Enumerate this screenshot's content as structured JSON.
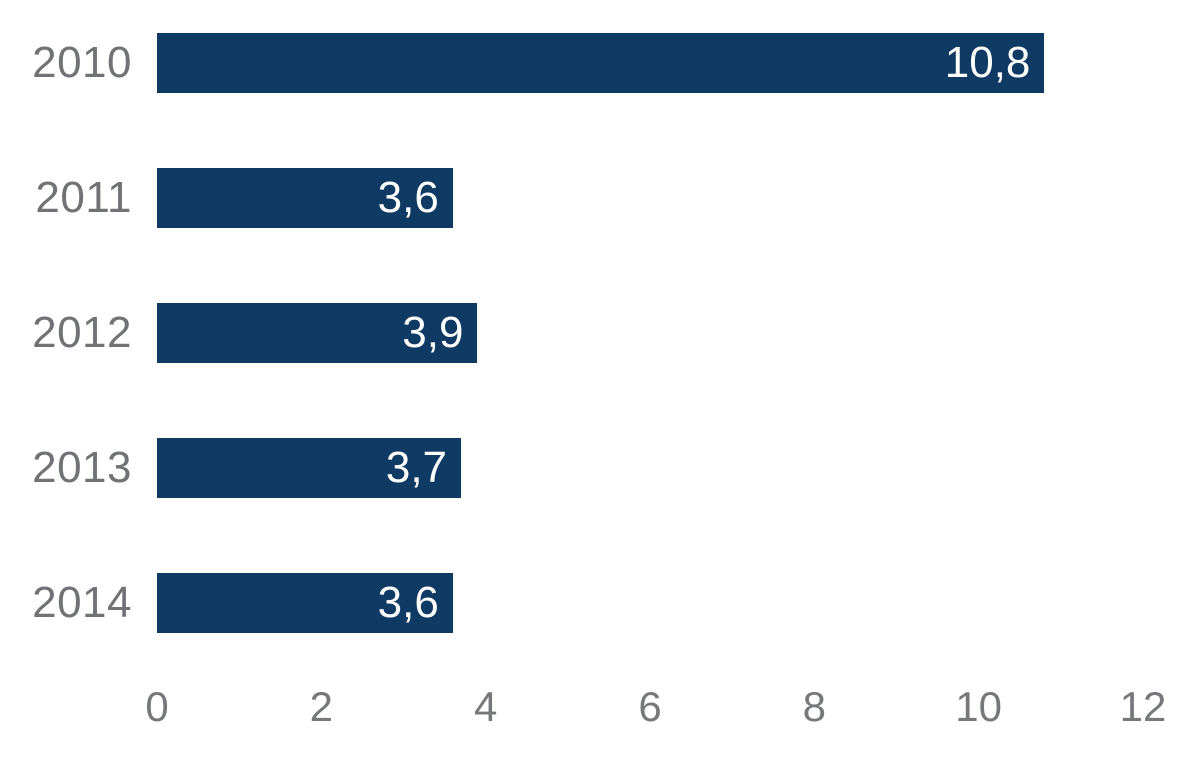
{
  "chart_data": {
    "type": "bar",
    "orientation": "horizontal",
    "title": "",
    "xlabel": "",
    "ylabel": "",
    "categories": [
      "2010",
      "2011",
      "2012",
      "2013",
      "2014"
    ],
    "values": [
      10.8,
      3.6,
      3.9,
      3.7,
      3.6
    ],
    "value_labels": [
      "10,8",
      "3,6",
      "3,9",
      "3,7",
      "3,6"
    ],
    "xlim": [
      0,
      12
    ],
    "xticks": [
      0,
      2,
      4,
      6,
      8,
      10,
      12
    ],
    "xtick_labels": [
      "0",
      "2",
      "4",
      "6",
      "8",
      "10",
      "12"
    ],
    "grid": false,
    "legend": null,
    "colors": {
      "bar": "#0e3a63",
      "value_label": "#ffffff",
      "category_label": "#717276",
      "tick_label": "#77787b",
      "background": "#ffffff"
    }
  }
}
